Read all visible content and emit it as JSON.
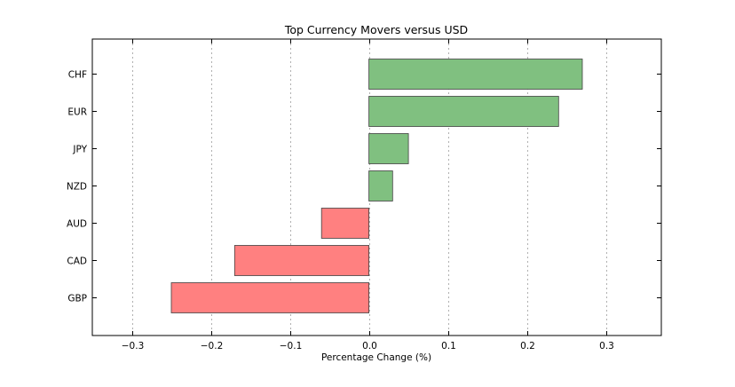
{
  "chart_data": {
    "type": "bar",
    "orientation": "horizontal",
    "title": "Top Currency Movers versus USD",
    "xlabel": "Percentage Change (%)",
    "ylabel": "",
    "categories": [
      "CHF",
      "EUR",
      "JPY",
      "NZD",
      "AUD",
      "CAD",
      "GBP"
    ],
    "values": [
      0.27,
      0.24,
      0.05,
      0.03,
      -0.06,
      -0.17,
      -0.25
    ],
    "xlim": [
      -0.35,
      0.37
    ],
    "xticks": [
      -0.3,
      -0.2,
      -0.1,
      0.0,
      0.1,
      0.2,
      0.3
    ],
    "xtick_labels": [
      "−0.3",
      "−0.2",
      "−0.1",
      "0.0",
      "0.1",
      "0.2",
      "0.3"
    ],
    "grid": "vertical-dashed",
    "colors": {
      "positive": "#80c080",
      "negative": "#ff8080",
      "edge": "#3a5a3a",
      "grid": "#b0b0b0",
      "axis": "#000000"
    }
  }
}
